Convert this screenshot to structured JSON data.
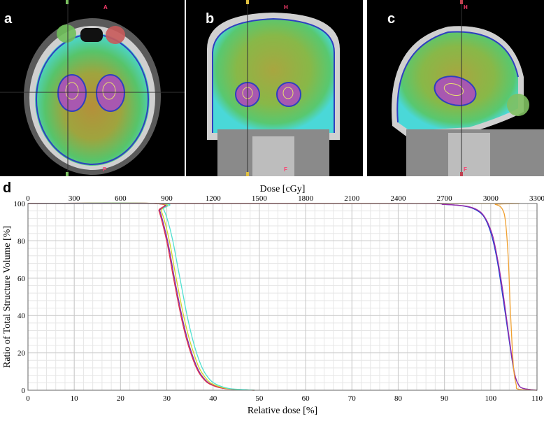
{
  "panels": {
    "a": {
      "letter": "a",
      "top_marker": "A",
      "bottom_marker": "P"
    },
    "b": {
      "letter": "b",
      "top_marker": "H",
      "bottom_marker": "F"
    },
    "c": {
      "letter": "c",
      "top_marker": "H",
      "bottom_marker": "F"
    },
    "d": {
      "letter": "d"
    }
  },
  "colors": {
    "ct_bone": "#d9d9d9",
    "ct_tissue": "#8a8a8a",
    "dose_low": "#4fd6e0",
    "dose_mid": "#7fd44a",
    "dose_high": "#d7c64a",
    "target": "#b15fbf"
  },
  "chart_data": {
    "type": "line",
    "title": "",
    "xlabel": "Relative dose [%]",
    "x2label": "Dose [cGy]",
    "ylabel": "Ratio of Total Structure Volume [%]",
    "xlim": [
      0,
      110
    ],
    "x2lim": [
      0,
      3300
    ],
    "ylim": [
      0,
      100
    ],
    "xticks": [
      0,
      10,
      20,
      30,
      40,
      50,
      60,
      70,
      80,
      90,
      100,
      110
    ],
    "x2ticks": [
      0,
      300,
      600,
      900,
      1200,
      1500,
      1800,
      2100,
      2400,
      2700,
      3000,
      3300
    ],
    "yticks": [
      0,
      20,
      40,
      60,
      80,
      100
    ],
    "grid": true,
    "series": [
      {
        "color": "#7a2fb0",
        "x": [
          0,
          27.5,
          28.5,
          29.5,
          30.5,
          31.5,
          32.5,
          33.5,
          34.5,
          35.5,
          36.5,
          37.5,
          39,
          41,
          43,
          46,
          49
        ],
        "y": [
          100,
          100,
          96,
          87,
          76,
          62,
          49,
          37,
          27,
          19,
          12.5,
          8,
          4,
          1.8,
          0.8,
          0.3,
          0
        ]
      },
      {
        "color": "#e0314a",
        "x": [
          0,
          27.3,
          28.3,
          29.3,
          30.3,
          31.3,
          32.3,
          33.3,
          34.3,
          35.3,
          36.3,
          37.3,
          38.8,
          40.8,
          42.8,
          45.8,
          48.8
        ],
        "y": [
          100,
          100,
          96,
          87,
          76,
          62,
          49,
          37,
          27,
          19,
          12.5,
          8,
          4,
          1.8,
          0.8,
          0.3,
          0
        ]
      },
      {
        "color": "#d4d42a",
        "x": [
          0,
          27.8,
          28.8,
          29.8,
          30.8,
          31.8,
          32.8,
          33.8,
          34.8,
          35.8,
          36.8,
          37.8,
          39.3,
          41.3,
          43.3,
          46.3,
          49
        ],
        "y": [
          100,
          100,
          96,
          88,
          77,
          63,
          50,
          38,
          28,
          20,
          13,
          8.5,
          4.2,
          1.9,
          0.8,
          0.3,
          0
        ]
      },
      {
        "color": "#4fe0d0",
        "x": [
          0,
          28.3,
          29.3,
          30.3,
          31.3,
          32.3,
          33.3,
          34.3,
          35.3,
          36.3,
          37.3,
          38.3,
          39.8,
          41.8,
          43.8,
          46.8,
          49
        ],
        "y": [
          100,
          100,
          97,
          90,
          80,
          67,
          54,
          41,
          30,
          21,
          14,
          9,
          4.5,
          2,
          0.8,
          0.3,
          0
        ]
      },
      {
        "color": "#1f3fd0",
        "x": [
          0,
          80,
          90,
          94,
          96,
          97.5,
          98.5,
          99.5,
          100.5,
          101.5,
          102.5,
          103.5,
          104.5,
          105.2,
          106,
          107,
          110
        ],
        "y": [
          100,
          100,
          99.5,
          98.7,
          97.5,
          95.5,
          93,
          88,
          80,
          68,
          52,
          35,
          18,
          8,
          3,
          1,
          0
        ]
      },
      {
        "color": "#9a2aa8",
        "x": [
          0,
          80,
          90,
          94,
          96,
          97.5,
          98.5,
          99.5,
          100.5,
          101.5,
          102.5,
          103.5,
          104.5,
          105.2,
          106,
          107,
          110
        ],
        "y": [
          100,
          100,
          99.5,
          98.8,
          97.8,
          96,
          93.5,
          89,
          82,
          70,
          55,
          37,
          19,
          8.5,
          3,
          1,
          0
        ]
      },
      {
        "color": "#f0a030",
        "x": [
          0,
          98,
          101,
          102.5,
          103.2,
          103.8,
          104.2,
          104.6,
          105,
          105.5,
          106,
          110
        ],
        "y": [
          100,
          100,
          99.5,
          97,
          90,
          70,
          45,
          25,
          10,
          3,
          0.5,
          0
        ]
      }
    ]
  }
}
